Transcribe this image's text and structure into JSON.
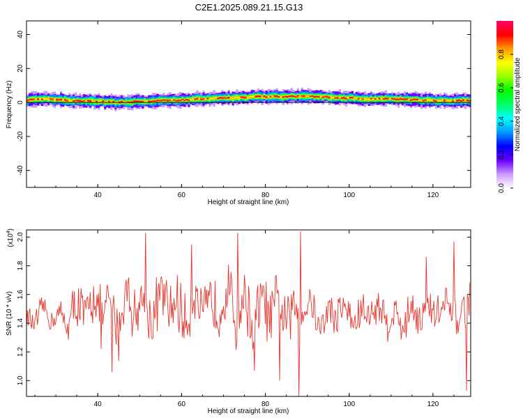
{
  "title": "C2E1.2025.089.21.15.G13",
  "chart_data": [
    {
      "type": "heatmap",
      "title": "C2E1.2025.089.21.15.G13",
      "xlabel": "Height of straight line (km)",
      "ylabel": "Frequency (Hz)",
      "xlim": [
        23,
        129
      ],
      "ylim": [
        -50,
        48
      ],
      "xticks": [
        40,
        60,
        80,
        100,
        120
      ],
      "yticks": [
        -40,
        -20,
        0,
        20,
        40
      ],
      "colorbar": {
        "label": "Normalized spectral amplitude",
        "range": [
          0,
          1
        ],
        "ticks": [
          0.0,
          0.2,
          0.4,
          0.6,
          0.8
        ],
        "colors": [
          "#ffffff",
          "#cc99ff",
          "#6600ff",
          "#0000ff",
          "#0099ff",
          "#00ffff",
          "#00ff66",
          "#00ff00",
          "#99ff00",
          "#ffff00",
          "#ff9900",
          "#ff0000",
          "#ff0066"
        ]
      },
      "band_center_hz": [
        [
          23,
          1.5
        ],
        [
          26,
          2.0
        ],
        [
          30,
          1.5
        ],
        [
          35,
          1.0
        ],
        [
          40,
          0.5
        ],
        [
          45,
          0.0
        ],
        [
          50,
          0.5
        ],
        [
          55,
          1.0
        ],
        [
          60,
          1.5
        ],
        [
          65,
          2.0
        ],
        [
          70,
          2.5
        ],
        [
          75,
          3.0
        ],
        [
          80,
          3.5
        ],
        [
          85,
          3.5
        ],
        [
          90,
          3.5
        ],
        [
          95,
          3.0
        ],
        [
          100,
          2.5
        ],
        [
          105,
          2.0
        ],
        [
          110,
          2.0
        ],
        [
          115,
          1.5
        ],
        [
          120,
          1.0
        ],
        [
          125,
          1.0
        ],
        [
          129,
          1.5
        ]
      ],
      "band_halfwidth_hz": 3.5
    },
    {
      "type": "line",
      "xlabel": "Height of straight line (km)",
      "ylabel": "SNR (10 * v/v)",
      "y_multiplier": "(x10",
      "y_multiplier_exp": "4",
      "y_multiplier_close": ")",
      "xlim": [
        23,
        129
      ],
      "ylim": [
        0.89,
        2.05
      ],
      "xticks": [
        40,
        60,
        80,
        100,
        120
      ],
      "yticks": [
        1.0,
        1.2,
        1.4,
        1.6,
        1.8,
        2.0
      ],
      "color": "#e8352c",
      "x": [
        23,
        25,
        27,
        29,
        31,
        33,
        35,
        37,
        39,
        41,
        43,
        45,
        47,
        49,
        51,
        53,
        55,
        57,
        59,
        61,
        63,
        65,
        67,
        69,
        71,
        73,
        75,
        77,
        79,
        81,
        83,
        85,
        87,
        89,
        91,
        93,
        95,
        97,
        99,
        101,
        103,
        105,
        107,
        109,
        111,
        113,
        115,
        117,
        119,
        121,
        123,
        125,
        127,
        129
      ],
      "y": [
        1.45,
        1.38,
        1.52,
        1.41,
        1.48,
        1.36,
        1.55,
        1.42,
        1.62,
        1.4,
        1.58,
        1.35,
        1.66,
        1.44,
        1.6,
        1.38,
        1.64,
        1.46,
        1.57,
        1.37,
        1.63,
        1.42,
        1.55,
        1.48,
        1.67,
        1.4,
        1.61,
        1.36,
        1.59,
        1.43,
        1.56,
        1.39,
        1.52,
        1.47,
        1.58,
        1.34,
        1.5,
        1.44,
        1.54,
        1.38,
        1.49,
        1.45,
        1.53,
        1.41,
        1.47,
        1.36,
        1.55,
        1.42,
        1.5,
        1.46,
        1.52,
        1.4,
        1.48,
        1.62
      ],
      "peaks": [
        {
          "x": 43.5,
          "y": 1.06
        },
        {
          "x": 51.5,
          "y": 2.03
        },
        {
          "x": 62.5,
          "y": 1.95
        },
        {
          "x": 73.5,
          "y": 2.03
        },
        {
          "x": 77.5,
          "y": 1.07
        },
        {
          "x": 83.5,
          "y": 1.0
        },
        {
          "x": 88.0,
          "y": 0.89
        },
        {
          "x": 88.5,
          "y": 2.04
        },
        {
          "x": 118.5,
          "y": 1.86
        },
        {
          "x": 125.0,
          "y": 1.97
        },
        {
          "x": 128.0,
          "y": 0.93
        }
      ]
    }
  ]
}
